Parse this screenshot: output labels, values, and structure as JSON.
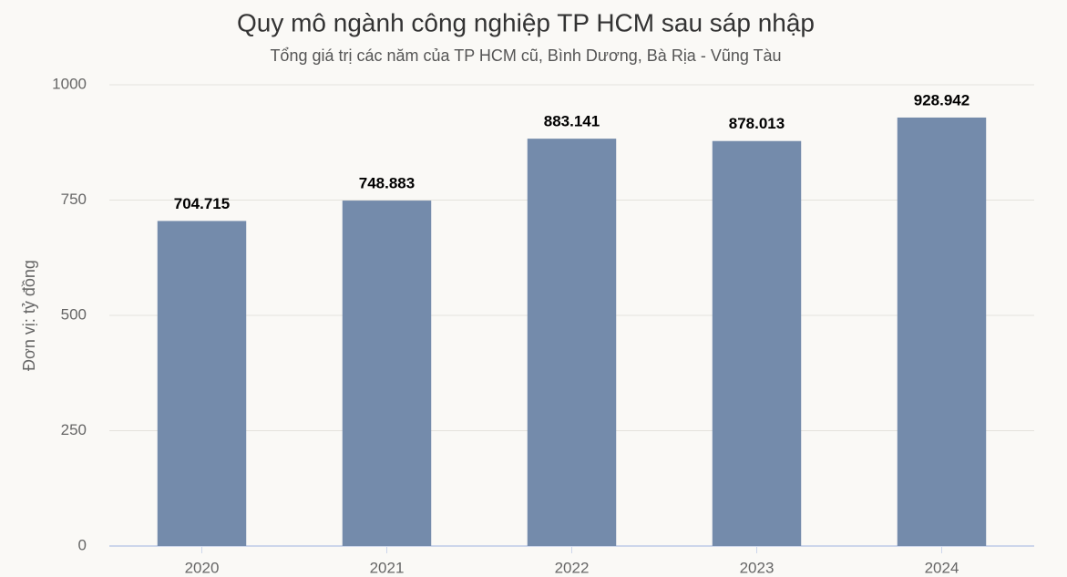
{
  "chart_data": {
    "type": "bar",
    "title": "Quy mô ngành công nghiệp TP HCM sau sáp nhập",
    "subtitle": "Tổng giá trị các năm của TP HCM cũ, Bình Dương, Bà Rịa - Vũng Tàu",
    "y_label": "Đơn vị: tỷ đồng",
    "categories": [
      "2020",
      "2021",
      "2022",
      "2023",
      "2024"
    ],
    "values": [
      704.715,
      748.883,
      883.141,
      878.013,
      928.942
    ],
    "color": "#748bab",
    "ylim": [
      0,
      1000
    ],
    "yticks": [
      0,
      250,
      500,
      750,
      1000
    ],
    "grid": true
  }
}
